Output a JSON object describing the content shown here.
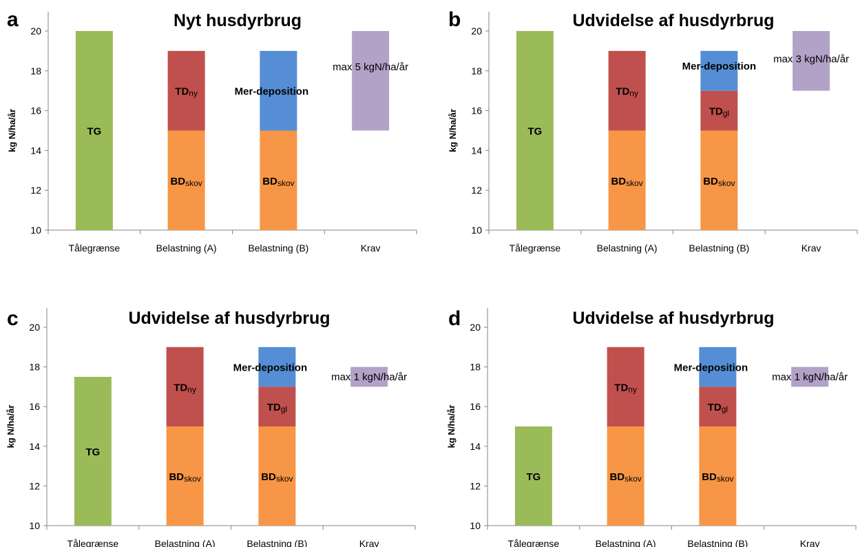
{
  "chart_data": [
    {
      "panel": "a",
      "type": "bar",
      "title": "Nyt husdyrbrug",
      "ylabel": "kg N/ha/år",
      "ylim": [
        10,
        20
      ],
      "yticks": [
        10,
        12,
        14,
        16,
        18,
        20
      ],
      "categories": [
        "Tålegrænse",
        "Belastning (A)",
        "Belastning (B)",
        "Krav"
      ],
      "bars": [
        {
          "category": "Tålegrænse",
          "segments": [
            {
              "from": 10,
              "to": 20,
              "color": "#9bbb59",
              "label": "TG",
              "sub": ""
            }
          ]
        },
        {
          "category": "Belastning (A)",
          "segments": [
            {
              "from": 10,
              "to": 15,
              "color": "#f79646",
              "label": "BD",
              "sub": "skov"
            },
            {
              "from": 15,
              "to": 19,
              "color": "#c0504d",
              "label": "TD",
              "sub": "ny"
            }
          ]
        },
        {
          "category": "Belastning (B)",
          "segments": [
            {
              "from": 10,
              "to": 15,
              "color": "#f79646",
              "label": "BD",
              "sub": "skov"
            },
            {
              "from": 15,
              "to": 19,
              "color": "#558ed5",
              "label": "Mer-deposition",
              "sub": "",
              "offset": "left"
            }
          ]
        },
        {
          "category": "Krav",
          "segments": [
            {
              "from": 15,
              "to": 20,
              "color": "#b3a2c7",
              "label": "",
              "sub": ""
            }
          ]
        }
      ],
      "annotation": "max 5 kgN/ha/år"
    },
    {
      "panel": "b",
      "type": "bar",
      "title": "Udvidelse af husdyrbrug",
      "ylabel": "kg N/ha/år",
      "ylim": [
        10,
        20
      ],
      "yticks": [
        10,
        12,
        14,
        16,
        18,
        20
      ],
      "categories": [
        "Tålegrænse",
        "Belastning (A)",
        "Belastning (B)",
        "Krav"
      ],
      "bars": [
        {
          "category": "Tålegrænse",
          "segments": [
            {
              "from": 10,
              "to": 20,
              "color": "#9bbb59",
              "label": "TG",
              "sub": ""
            }
          ]
        },
        {
          "category": "Belastning (A)",
          "segments": [
            {
              "from": 10,
              "to": 15,
              "color": "#f79646",
              "label": "BD",
              "sub": "skov"
            },
            {
              "from": 15,
              "to": 19,
              "color": "#c0504d",
              "label": "TD",
              "sub": "ny"
            }
          ]
        },
        {
          "category": "Belastning (B)",
          "segments": [
            {
              "from": 10,
              "to": 15,
              "color": "#f79646",
              "label": "BD",
              "sub": "skov"
            },
            {
              "from": 15,
              "to": 17,
              "color": "#c0504d",
              "label": "TD",
              "sub": "gl"
            },
            {
              "from": 17,
              "to": 19,
              "color": "#558ed5",
              "label": "Mer-deposition",
              "sub": "",
              "offset": "raise"
            }
          ]
        },
        {
          "category": "Krav",
          "segments": [
            {
              "from": 17,
              "to": 20,
              "color": "#b3a2c7",
              "label": "",
              "sub": ""
            }
          ]
        }
      ],
      "annotation": "max 3 kgN/ha/år"
    },
    {
      "panel": "c",
      "type": "bar",
      "title": "Udvidelse af husdyrbrug",
      "ylabel": "kg N/ha/år",
      "ylim": [
        10,
        20
      ],
      "yticks": [
        10,
        12,
        14,
        16,
        18,
        20
      ],
      "categories": [
        "Tålegrænse",
        "Belastning (A)",
        "Belastning (B)",
        "Krav"
      ],
      "bars": [
        {
          "category": "Tålegrænse",
          "segments": [
            {
              "from": 10,
              "to": 17.5,
              "color": "#9bbb59",
              "label": "TG",
              "sub": ""
            }
          ]
        },
        {
          "category": "Belastning (A)",
          "segments": [
            {
              "from": 10,
              "to": 15,
              "color": "#f79646",
              "label": "BD",
              "sub": "skov"
            },
            {
              "from": 15,
              "to": 19,
              "color": "#c0504d",
              "label": "TD",
              "sub": "ny"
            }
          ]
        },
        {
          "category": "Belastning (B)",
          "segments": [
            {
              "from": 10,
              "to": 15,
              "color": "#f79646",
              "label": "BD",
              "sub": "skov"
            },
            {
              "from": 15,
              "to": 17,
              "color": "#c0504d",
              "label": "TD",
              "sub": "gl"
            },
            {
              "from": 17,
              "to": 19,
              "color": "#558ed5",
              "label": "Mer-deposition",
              "sub": "",
              "offset": "left"
            }
          ]
        },
        {
          "category": "Krav",
          "segments": [
            {
              "from": 17,
              "to": 18,
              "color": "#b3a2c7",
              "label": "",
              "sub": ""
            }
          ]
        }
      ],
      "annotation": "max 1 kgN/ha/år"
    },
    {
      "panel": "d",
      "type": "bar",
      "title": "Udvidelse af husdyrbrug",
      "ylabel": "kg N/ha/år",
      "ylim": [
        10,
        20
      ],
      "yticks": [
        10,
        12,
        14,
        16,
        18,
        20
      ],
      "categories": [
        "Tålegrænse",
        "Belastning (A)",
        "Belastning (B)",
        "Krav"
      ],
      "bars": [
        {
          "category": "Tålegrænse",
          "segments": [
            {
              "from": 10,
              "to": 15,
              "color": "#9bbb59",
              "label": "TG",
              "sub": ""
            }
          ]
        },
        {
          "category": "Belastning (A)",
          "segments": [
            {
              "from": 10,
              "to": 15,
              "color": "#f79646",
              "label": "BD",
              "sub": "skov"
            },
            {
              "from": 15,
              "to": 19,
              "color": "#c0504d",
              "label": "TD",
              "sub": "ny"
            }
          ]
        },
        {
          "category": "Belastning (B)",
          "segments": [
            {
              "from": 10,
              "to": 15,
              "color": "#f79646",
              "label": "BD",
              "sub": "skov"
            },
            {
              "from": 15,
              "to": 17,
              "color": "#c0504d",
              "label": "TD",
              "sub": "gl"
            },
            {
              "from": 17,
              "to": 19,
              "color": "#558ed5",
              "label": "Mer-deposition",
              "sub": "",
              "offset": "left"
            }
          ]
        },
        {
          "category": "Krav",
          "segments": [
            {
              "from": 17,
              "to": 18,
              "color": "#b3a2c7",
              "label": "",
              "sub": ""
            }
          ]
        }
      ],
      "annotation": "max 1 kgN/ha/år"
    }
  ]
}
